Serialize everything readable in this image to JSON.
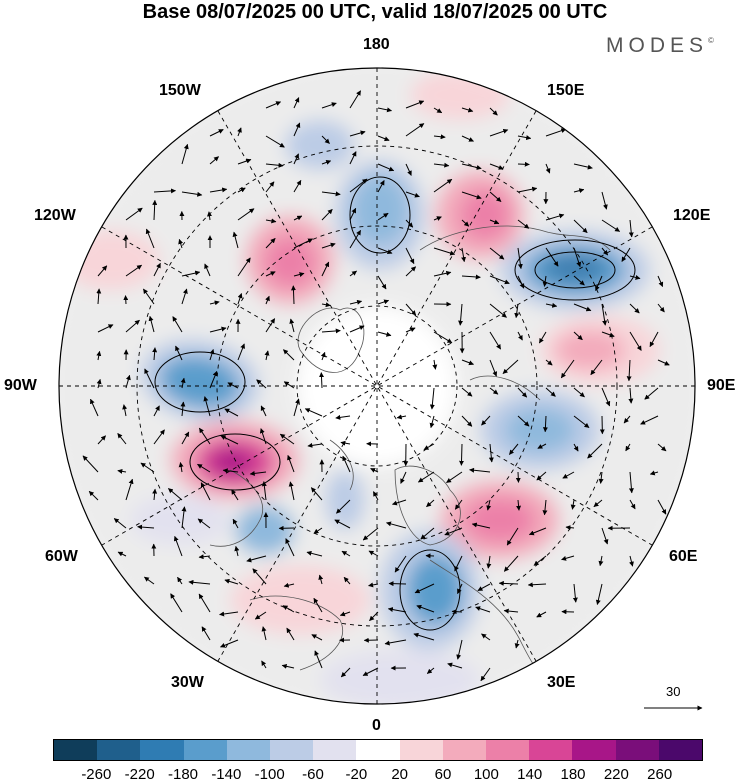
{
  "title": "Base 08/07/2025 00 UTC, valid 18/07/2025 00 UTC",
  "brand": {
    "name": "MODES",
    "mark": "©"
  },
  "longitude_labels": {
    "top": "180",
    "top_left": "150W",
    "top_right": "150E",
    "upper_left": "120W",
    "upper_right": "120E",
    "left": "90W",
    "right": "90E",
    "lower_left": "60W",
    "lower_right": "60E",
    "bottom_left": "30W",
    "bottom_right": "30E",
    "bottom": "0"
  },
  "reference_vector": {
    "value": "30"
  },
  "colorbar": {
    "labels": [
      "-260",
      "-220",
      "-180",
      "-140",
      "-100",
      "-60",
      "-20",
      "20",
      "60",
      "100",
      "140",
      "180",
      "220",
      "260"
    ],
    "colors": [
      "#0f3d5a",
      "#1f5f8c",
      "#2f7cb3",
      "#5a9dcc",
      "#8fb9dd",
      "#bccce6",
      "#e2e1ef",
      "#ffffff",
      "#f8d5d9",
      "#f3abbc",
      "#ec80a8",
      "#d94596",
      "#a81688",
      "#7a0e7a",
      "#4b086b"
    ]
  },
  "anomaly_centers": [
    {
      "sign": "negative",
      "intensity": "strong",
      "color": "#3f7fb0"
    },
    {
      "sign": "positive",
      "intensity": "strong",
      "color": "#c2187e"
    }
  ]
}
